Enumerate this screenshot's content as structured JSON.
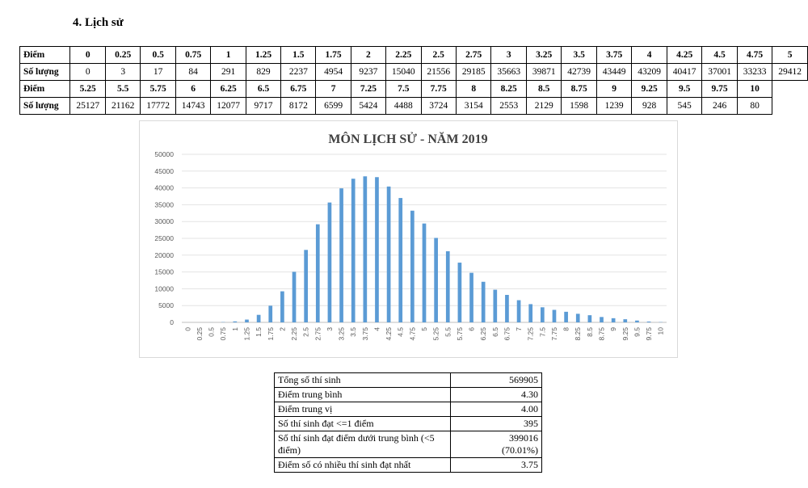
{
  "heading": "4.  Lịch sử",
  "dist_table": {
    "label_score": "Điểm",
    "label_count": "Số lượng",
    "row1_scores": [
      "0",
      "0.25",
      "0.5",
      "0.75",
      "1",
      "1.25",
      "1.5",
      "1.75",
      "2",
      "2.25",
      "2.5",
      "2.75",
      "3",
      "3.25",
      "3.5",
      "3.75",
      "4",
      "4.25",
      "4.5",
      "4.75",
      "5"
    ],
    "row1_counts": [
      "0",
      "3",
      "17",
      "84",
      "291",
      "829",
      "2237",
      "4954",
      "9237",
      "15040",
      "21556",
      "29185",
      "35663",
      "39871",
      "42739",
      "43449",
      "43209",
      "40417",
      "37001",
      "33233",
      "29412"
    ],
    "row2_scores": [
      "5.25",
      "5.5",
      "5.75",
      "6",
      "6.25",
      "6.5",
      "6.75",
      "7",
      "7.25",
      "7.5",
      "7.75",
      "8",
      "8.25",
      "8.5",
      "8.75",
      "9",
      "9.25",
      "9.5",
      "9.75",
      "10"
    ],
    "row2_counts": [
      "25127",
      "21162",
      "17772",
      "14743",
      "12077",
      "9717",
      "8172",
      "6599",
      "5424",
      "4488",
      "3724",
      "3154",
      "2553",
      "2129",
      "1598",
      "1239",
      "928",
      "545",
      "246",
      "80"
    ]
  },
  "chart_data": {
    "type": "bar",
    "title": "MÔN LỊCH SỬ - NĂM 2019",
    "xlabel": "",
    "ylabel": "",
    "ylim": [
      0,
      50000
    ],
    "yticks": [
      "0",
      "5000",
      "10000",
      "15000",
      "20000",
      "25000",
      "30000",
      "35000",
      "40000",
      "45000",
      "50000"
    ],
    "grid": true,
    "bar_color": "#5b9bd5",
    "categories": [
      "0",
      "0.25",
      "0.5",
      "0.75",
      "1",
      "1.25",
      "1.5",
      "1.75",
      "2",
      "2.25",
      "2.5",
      "2.75",
      "3",
      "3.25",
      "3.5",
      "3.75",
      "4",
      "4.25",
      "4.5",
      "4.75",
      "5",
      "5.25",
      "5.5",
      "5.75",
      "6",
      "6.25",
      "6.5",
      "6.75",
      "7",
      "7.25",
      "7.5",
      "7.75",
      "8",
      "8.25",
      "8.5",
      "8.75",
      "9",
      "9.25",
      "9.5",
      "9.75",
      "10"
    ],
    "values": [
      0,
      3,
      17,
      84,
      291,
      829,
      2237,
      4954,
      9237,
      15040,
      21556,
      29185,
      35663,
      39871,
      42739,
      43449,
      43209,
      40417,
      37001,
      33233,
      29412,
      25127,
      21162,
      17772,
      14743,
      12077,
      9717,
      8172,
      6599,
      5424,
      4488,
      3724,
      3154,
      2553,
      2129,
      1598,
      1239,
      928,
      545,
      246,
      80
    ]
  },
  "stats": [
    {
      "label": "Tổng số thí sinh",
      "value": "569905"
    },
    {
      "label": "Điểm trung bình",
      "value": "4.30"
    },
    {
      "label": "Điểm trung vị",
      "value": "4.00"
    },
    {
      "label": "Số thí sinh đạt <=1 điểm",
      "value": "395"
    },
    {
      "label": "Số thí sinh đạt điểm dưới trung bình (<5 điểm)",
      "value": "399016",
      "value2": "(70.01%)"
    },
    {
      "label": "Điểm số có nhiều thí sinh đạt nhất",
      "value": "3.75"
    }
  ]
}
